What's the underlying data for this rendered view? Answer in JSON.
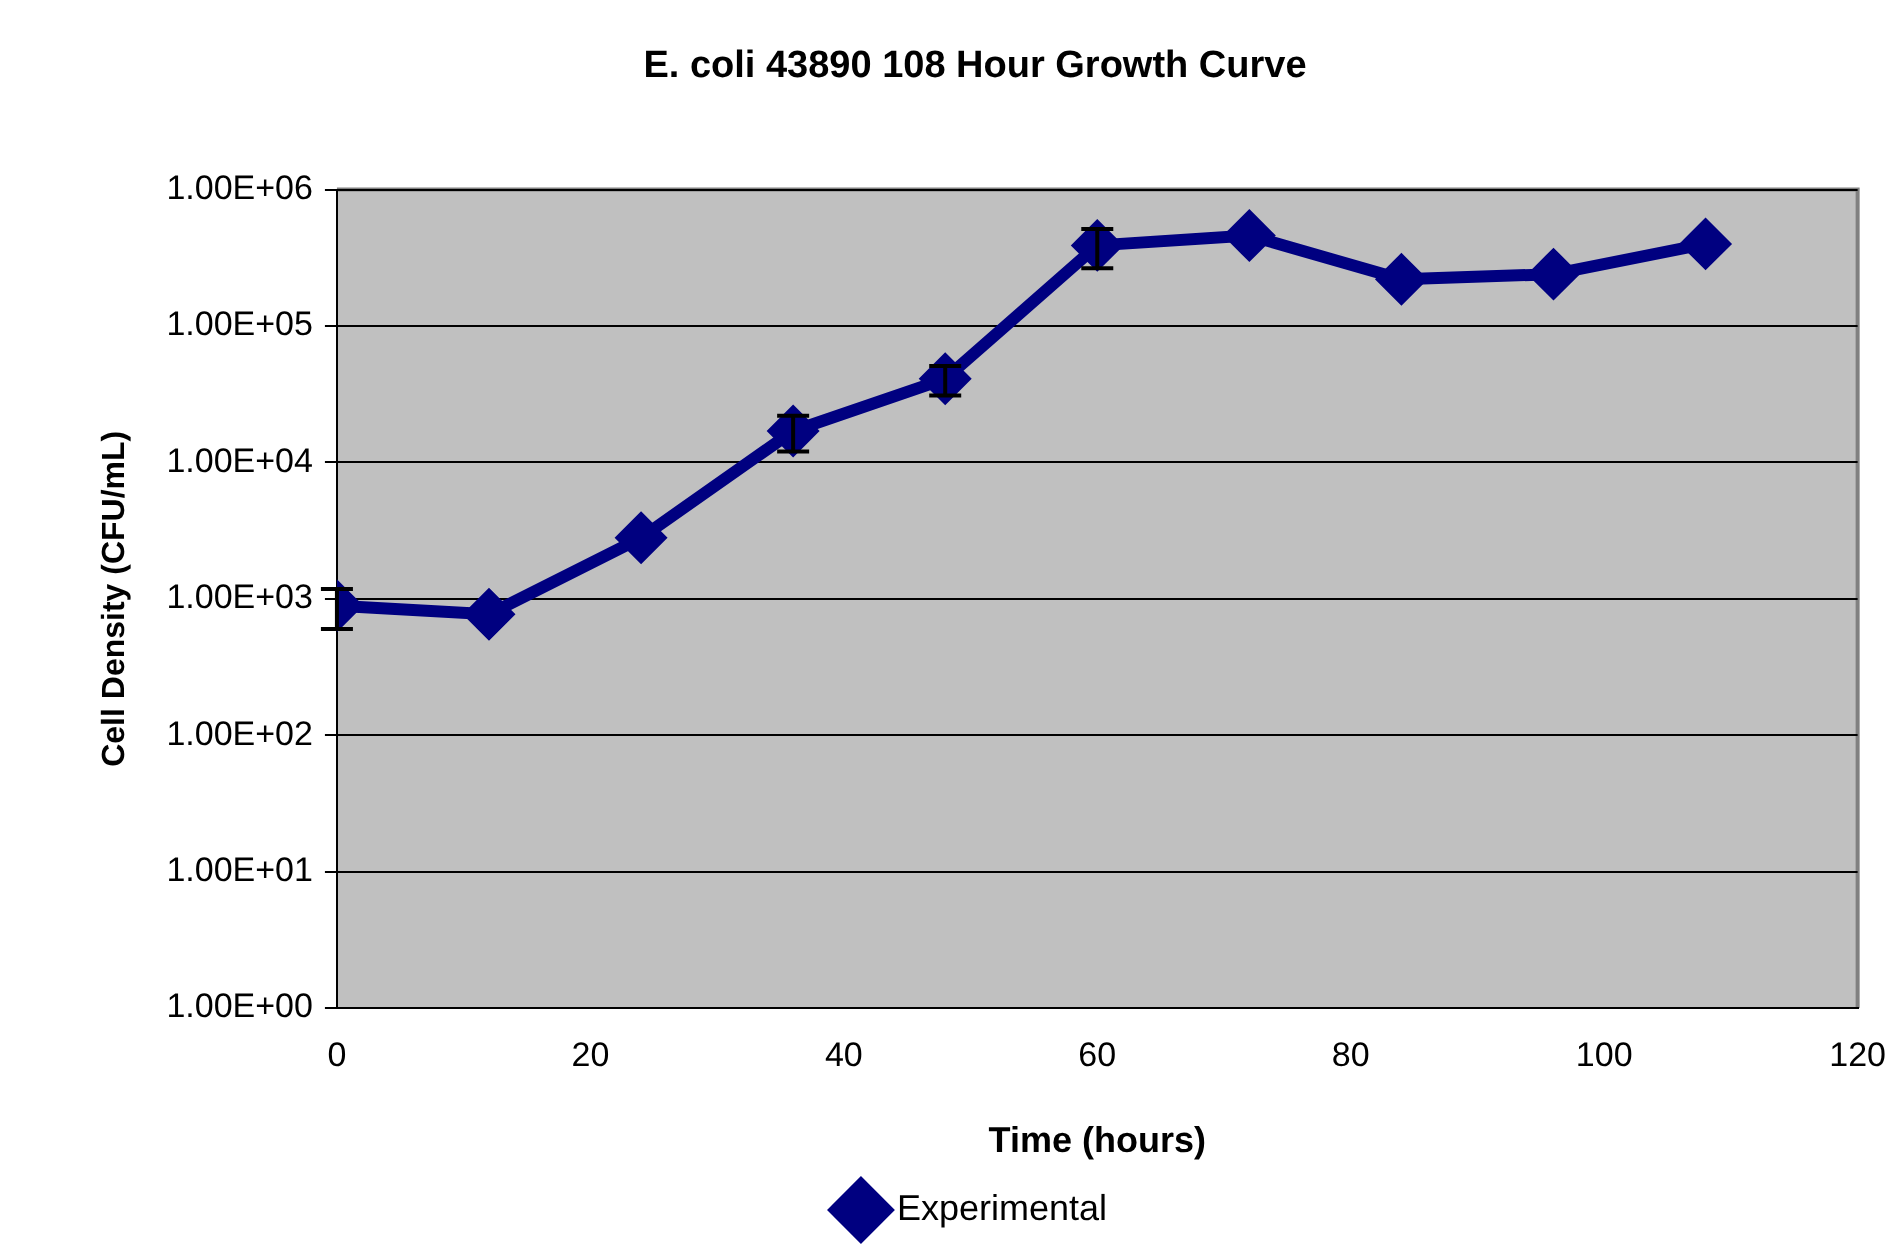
{
  "chart_data": {
    "type": "line",
    "title": "E. coli 43890 108 Hour Growth Curve",
    "xlabel": "Time (hours)",
    "ylabel": "Cell Density (CFU/mL)",
    "x": [
      0,
      12,
      24,
      36,
      48,
      60,
      72,
      84,
      96,
      108
    ],
    "series": [
      {
        "name": "Experimental",
        "color": "#000080",
        "values": [
          890,
          770,
          2800,
          17000,
          41000,
          390000,
          460000,
          220000,
          240000,
          400000
        ],
        "errors": [
          290,
          null,
          null,
          5000,
          10000,
          125000,
          null,
          null,
          null,
          null
        ]
      }
    ],
    "xlim": [
      0,
      120
    ],
    "xticks": [
      0,
      20,
      40,
      60,
      80,
      100,
      120
    ],
    "ylim": [
      1,
      1000000
    ],
    "yticks": [
      {
        "value": 1,
        "label": "1.00E+00"
      },
      {
        "value": 10,
        "label": "1.00E+01"
      },
      {
        "value": 100,
        "label": "1.00E+02"
      },
      {
        "value": 1000,
        "label": "1.00E+03"
      },
      {
        "value": 10000,
        "label": "1.00E+04"
      },
      {
        "value": 100000,
        "label": "1.00E+05"
      },
      {
        "value": 1000000,
        "label": "1.00E+06"
      }
    ],
    "log": "y",
    "grid": "y",
    "legend": "bottom",
    "marker": "diamond",
    "line_style": "solid"
  }
}
